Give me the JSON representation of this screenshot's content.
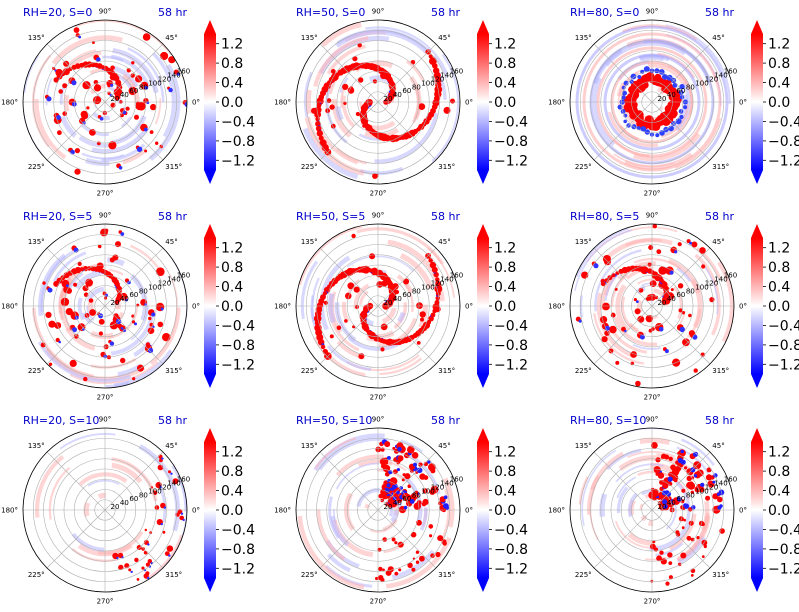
{
  "chart_data": {
    "type": "heatmap",
    "layout": {
      "rows": 3,
      "cols": 3,
      "projection": "polar"
    },
    "theta_labels": [
      "0°",
      "45°",
      "90°",
      "135°",
      "180°",
      "225°",
      "270°",
      "315°"
    ],
    "r_labels": [
      "20",
      "40",
      "60",
      "80",
      "100",
      "120",
      "140",
      "160"
    ],
    "colorbar": {
      "colormap": "bwr",
      "vmin": -1.4,
      "vmax": 1.4,
      "extend": "both",
      "ticks": [
        "1.2",
        "0.8",
        "0.4",
        "0.0",
        "−0.4",
        "−0.8",
        "−1.2"
      ],
      "colors": {
        "low": "#0000ff",
        "mid": "#ffffff",
        "high": "#ff0000"
      }
    },
    "panels": [
      {
        "title": "RH=20, S=0",
        "time": "58 hr",
        "rh": 20,
        "s": 0,
        "pattern": "scattered"
      },
      {
        "title": "RH=50, S=0",
        "time": "58 hr",
        "rh": 50,
        "s": 0,
        "pattern": "spiral"
      },
      {
        "title": "RH=80, S=0",
        "time": "58 hr",
        "rh": 80,
        "s": 0,
        "pattern": "ring"
      },
      {
        "title": "RH=20, S=5",
        "time": "58 hr",
        "rh": 20,
        "s": 5,
        "pattern": "scattered"
      },
      {
        "title": "RH=50, S=5",
        "time": "58 hr",
        "rh": 50,
        "s": 5,
        "pattern": "spiral"
      },
      {
        "title": "RH=80, S=5",
        "time": "58 hr",
        "rh": 80,
        "s": 5,
        "pattern": "scattered"
      },
      {
        "title": "RH=20, S=10",
        "time": "58 hr",
        "rh": 20,
        "s": 10,
        "pattern": "sparse"
      },
      {
        "title": "RH=50, S=10",
        "time": "58 hr",
        "rh": 50,
        "s": 10,
        "pattern": "sheared"
      },
      {
        "title": "RH=80, S=10",
        "time": "58 hr",
        "rh": 80,
        "s": 10,
        "pattern": "sheared"
      }
    ]
  }
}
